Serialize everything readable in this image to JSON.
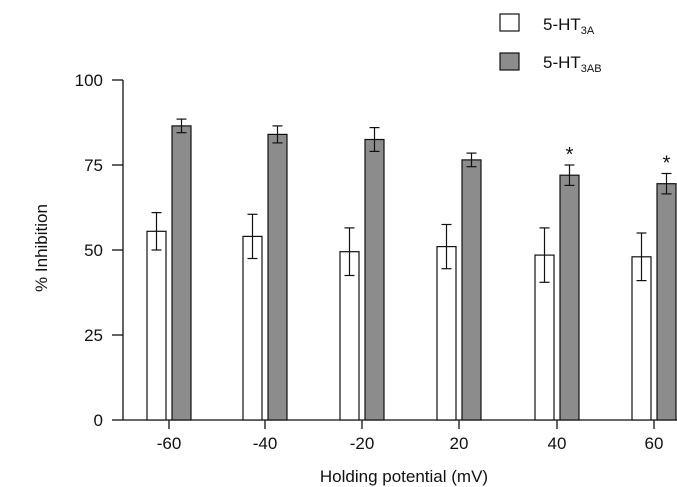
{
  "chart_data": {
    "type": "bar",
    "categories": [
      "-60",
      "-40",
      "-20",
      "20",
      "40",
      "60"
    ],
    "series": [
      {
        "name_main": "5-HT",
        "name_sub": "3A",
        "values": [
          55.5,
          54.0,
          49.5,
          51.0,
          48.5,
          48.0
        ],
        "errors": [
          5.5,
          6.5,
          7.0,
          6.5,
          8.0,
          7.0
        ],
        "color": "#ffffff"
      },
      {
        "name_main": "5-HT",
        "name_sub": "3AB",
        "values": [
          86.5,
          84.0,
          82.5,
          76.5,
          72.0,
          69.5
        ],
        "errors": [
          2.0,
          2.5,
          3.5,
          2.0,
          3.0,
          3.0
        ],
        "color": "#8c8c8c"
      }
    ],
    "significance": [
      "",
      "",
      "",
      "",
      "*",
      "*"
    ],
    "xlabel": "Holding potential (mV)",
    "ylabel": "% Inhibition",
    "ylim": [
      0,
      100
    ],
    "yticks": [
      "0",
      "25",
      "50",
      "75",
      "100"
    ],
    "grid": false,
    "legend_position": "top-right"
  }
}
